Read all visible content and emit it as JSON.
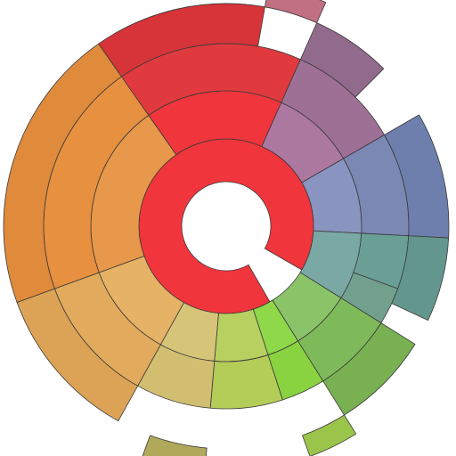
{
  "chart_data": {
    "type": "sunburst",
    "title": "",
    "rings": [
      {
        "ring": 1,
        "segments": [
          {
            "name": "",
            "start_deg": -210,
            "end_deg": 120,
            "color": "#f0353c"
          }
        ]
      },
      {
        "ring": 2,
        "segments": [
          {
            "name": "",
            "start_deg": -35,
            "end_deg": 24,
            "color": "#f0353c"
          },
          {
            "name": "",
            "start_deg": 24,
            "end_deg": 60,
            "color": "#ac78a0"
          },
          {
            "name": "",
            "start_deg": 60,
            "end_deg": 93,
            "color": "#8a94c0"
          },
          {
            "name": "",
            "start_deg": 93,
            "end_deg": 122,
            "color": "#7aa8a4"
          },
          {
            "name": "",
            "start_deg": 122,
            "end_deg": 148,
            "color": "#8ac368"
          },
          {
            "name": "",
            "start_deg": 148,
            "end_deg": 162,
            "color": "#8ed84a"
          },
          {
            "name": "",
            "start_deg": 162,
            "end_deg": 185,
            "color": "#b8d060"
          },
          {
            "name": "",
            "start_deg": 185,
            "end_deg": 209,
            "color": "#d6c478"
          },
          {
            "name": "",
            "start_deg": 209,
            "end_deg": 250,
            "color": "#e6b266"
          },
          {
            "name": "",
            "start_deg": 250,
            "end_deg": 325,
            "color": "#e8984a"
          }
        ]
      },
      {
        "ring": 3,
        "segments": [
          {
            "name": "",
            "start_deg": -35,
            "end_deg": 24,
            "color": "#e03a3e"
          },
          {
            "name": "",
            "start_deg": 24,
            "end_deg": 60,
            "color": "#9f7096"
          },
          {
            "name": "",
            "start_deg": 60,
            "end_deg": 93,
            "color": "#7b88b4"
          },
          {
            "name": "",
            "start_deg": 93,
            "end_deg": 110,
            "color": "#6a9f96"
          },
          {
            "name": "",
            "start_deg": 110,
            "end_deg": 122,
            "color": "#72a08c"
          },
          {
            "name": "",
            "start_deg": 122,
            "end_deg": 148,
            "color": "#7fba5a"
          },
          {
            "name": "",
            "start_deg": 148,
            "end_deg": 162,
            "color": "#8ad340"
          },
          {
            "name": "",
            "start_deg": 162,
            "end_deg": 185,
            "color": "#b4cc58"
          },
          {
            "name": "",
            "start_deg": 185,
            "end_deg": 209,
            "color": "#d2be70"
          },
          {
            "name": "",
            "start_deg": 209,
            "end_deg": 250,
            "color": "#e2aa5c"
          },
          {
            "name": "",
            "start_deg": 250,
            "end_deg": 325,
            "color": "#e69040"
          }
        ]
      }
    ],
    "outer_shapes": [
      {
        "start_deg": -35,
        "end_deg": 10,
        "ring": 4,
        "color": "#d63438"
      },
      {
        "start_deg": 10,
        "end_deg": 24,
        "ring": 5,
        "color": "#c07080"
      },
      {
        "start_deg": 24,
        "end_deg": 45,
        "ring": 4,
        "color": "#926a8c"
      },
      {
        "start_deg": 60,
        "end_deg": 93,
        "ring": 4,
        "color": "#6e7fae"
      },
      {
        "start_deg": 93,
        "end_deg": 115,
        "ring": 4,
        "color": "#63968c"
      },
      {
        "start_deg": 122,
        "end_deg": 148,
        "ring": 4,
        "color": "#78b052"
      },
      {
        "start_deg": 148,
        "end_deg": 160,
        "ring": 5,
        "color": "#9ac44a"
      },
      {
        "start_deg": 185,
        "end_deg": 200,
        "ring": 5,
        "color": "#b0a85a"
      },
      {
        "start_deg": 209,
        "end_deg": 250,
        "ring": 4,
        "color": "#dca356"
      },
      {
        "start_deg": 250,
        "end_deg": 325,
        "ring": 4,
        "color": "#e08a3c"
      }
    ]
  }
}
